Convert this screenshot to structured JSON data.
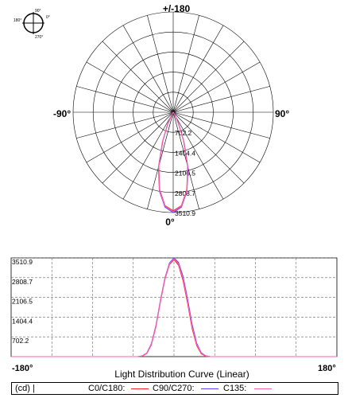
{
  "chart_data": [
    {
      "type": "polar",
      "inset": {
        "label_0": "0°",
        "label_90": "90°",
        "label_180": "180°",
        "label_270": "270°"
      },
      "angle_labels": {
        "top": "+/-180",
        "bottom": "0°",
        "left": "-90°",
        "right": "90°"
      },
      "radial_ticks": [
        "702.2",
        "1404.4",
        "2106.5",
        "2808.7",
        "3510.9"
      ],
      "rmax": 3510.9,
      "series": [
        {
          "name": "C0/C180",
          "color": "#ff2020",
          "angles_deg": [
            0,
            5,
            10,
            15,
            20,
            25,
            30,
            35,
            40
          ],
          "values": [
            3450,
            3280,
            2750,
            1950,
            1050,
            420,
            110,
            20,
            0
          ]
        },
        {
          "name": "C90/C270",
          "color": "#6040ff",
          "angles_deg": [
            0,
            5,
            10,
            15,
            20,
            25,
            30,
            35,
            40
          ],
          "values": [
            3510.9,
            3330,
            2800,
            2000,
            1100,
            460,
            130,
            25,
            0
          ]
        },
        {
          "name": "C135",
          "color": "#ff60b0",
          "angles_deg": [
            0,
            5,
            10,
            15,
            20,
            25,
            30,
            35,
            40
          ],
          "values": [
            3480,
            3300,
            2770,
            1970,
            1070,
            440,
            120,
            22,
            0
          ]
        }
      ]
    },
    {
      "type": "line",
      "xlabel": "Light Distribution Curve (Linear)",
      "x_tick_labels": [
        "-180°",
        "180°"
      ],
      "xlim": [
        -180,
        180
      ],
      "y_ticks": [
        702.2,
        1404.4,
        2106.5,
        2808.7,
        3510.9
      ],
      "y_tick_labels": [
        "702.2",
        "1404.4",
        "2106.5",
        "2808.7",
        "3510.9"
      ],
      "ylim": [
        0,
        3510.9
      ],
      "series": [
        {
          "name": "C0/C180",
          "color": "#ff2020",
          "x": [
            -180,
            -50,
            -40,
            -35,
            -30,
            -25,
            -20,
            -15,
            -10,
            -5,
            0,
            5,
            10,
            15,
            20,
            25,
            30,
            35,
            40,
            50,
            180
          ],
          "y": [
            0,
            0,
            0,
            20,
            110,
            420,
            1050,
            1950,
            2750,
            3280,
            3450,
            3250,
            2700,
            1900,
            1000,
            400,
            100,
            15,
            0,
            0,
            0
          ]
        },
        {
          "name": "C90/C270",
          "color": "#6040ff",
          "x": [
            -180,
            -50,
            -40,
            -35,
            -30,
            -25,
            -20,
            -15,
            -10,
            -5,
            0,
            5,
            10,
            15,
            20,
            25,
            30,
            35,
            40,
            50,
            180
          ],
          "y": [
            0,
            0,
            0,
            25,
            130,
            460,
            1100,
            2000,
            2800,
            3330,
            3510.9,
            3350,
            2850,
            2050,
            1150,
            480,
            140,
            30,
            0,
            0,
            0
          ]
        },
        {
          "name": "C135",
          "color": "#ff60b0",
          "x": [
            -180,
            -50,
            -40,
            -35,
            -30,
            -25,
            -20,
            -15,
            -10,
            -5,
            0,
            5,
            10,
            15,
            20,
            25,
            30,
            35,
            40,
            50,
            180
          ],
          "y": [
            0,
            0,
            0,
            22,
            120,
            440,
            1070,
            1970,
            2770,
            3300,
            3480,
            3300,
            2770,
            1970,
            1070,
            440,
            120,
            22,
            0,
            0,
            0
          ]
        }
      ]
    }
  ],
  "legend": {
    "unit": "(cd) |",
    "items": [
      {
        "label": "C0/C180:",
        "color": "#ff2020"
      },
      {
        "label": "C90/C270:",
        "color": "#6040ff"
      },
      {
        "label": "C135:",
        "color": "#ff60b0"
      }
    ]
  }
}
